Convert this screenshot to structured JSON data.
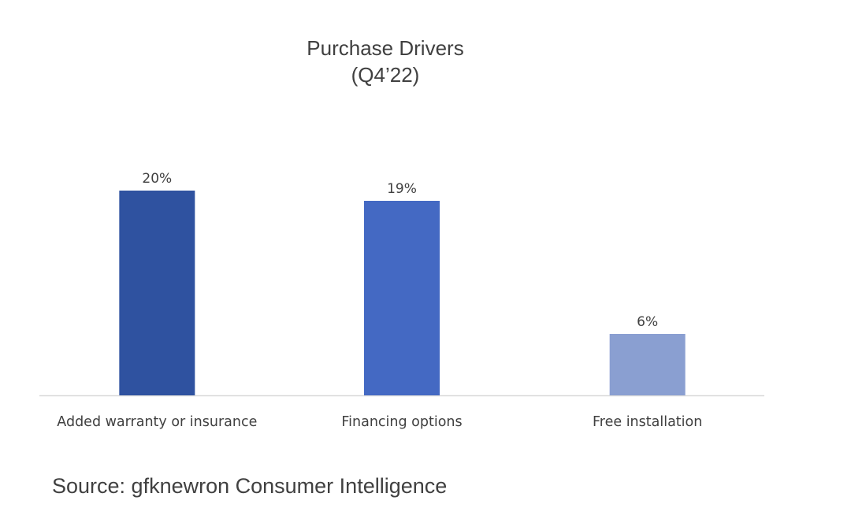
{
  "chart_data": {
    "type": "bar",
    "title": "Purchase Drivers",
    "subtitle": "(Q4’22)",
    "categories": [
      "Added warranty or insurance",
      "Financing options",
      "Free installation"
    ],
    "values": [
      20,
      19,
      6
    ],
    "data_labels": [
      "20%",
      "19%",
      "6%"
    ],
    "unit": "%",
    "colors": [
      "#2f52a0",
      "#4469c3",
      "#8a9fd1"
    ],
    "ylim": [
      0,
      20
    ],
    "xlabel": "",
    "ylabel": "",
    "grid": false,
    "legend": "none"
  },
  "source": "Source: gfknewron Consumer Intelligence"
}
